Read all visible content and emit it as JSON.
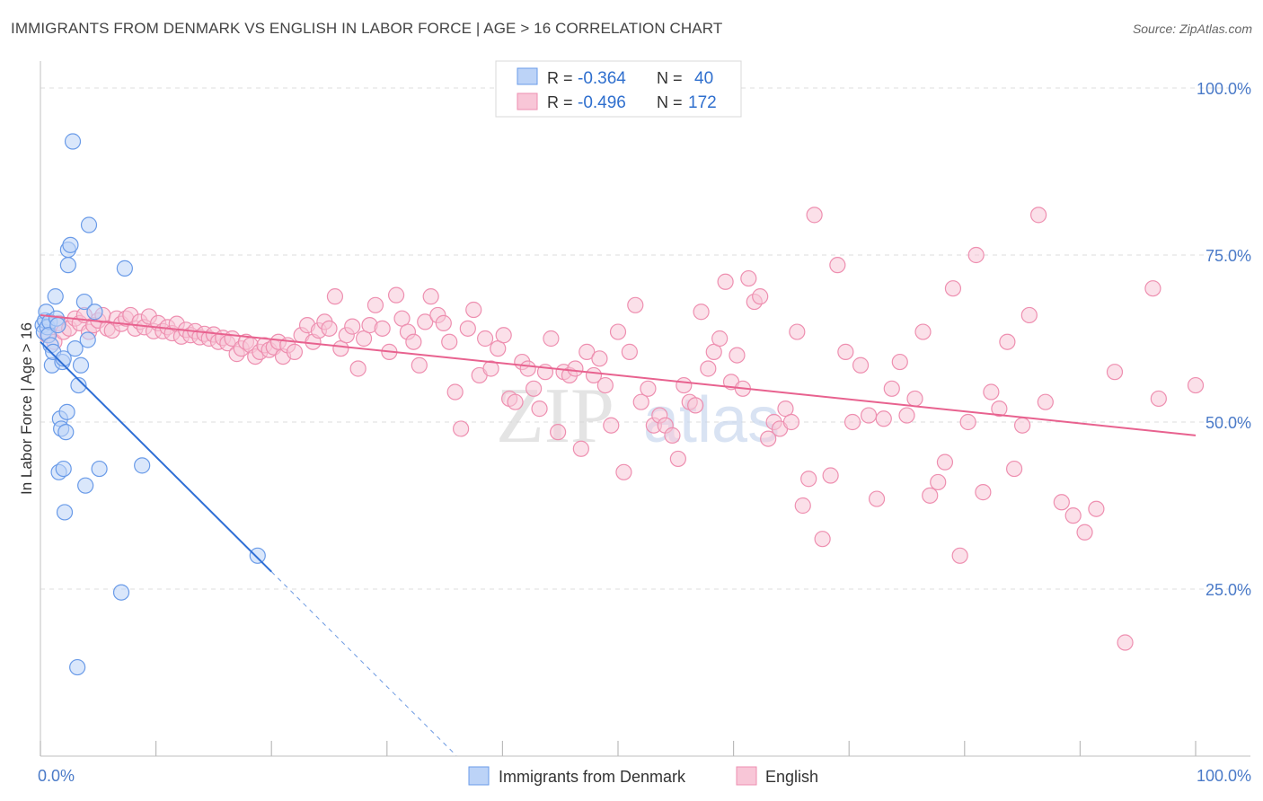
{
  "title": "IMMIGRANTS FROM DENMARK VS ENGLISH IN LABOR FORCE | AGE > 16 CORRELATION CHART",
  "source": "Source: ZipAtlas.com",
  "watermark": "ZIPatlas",
  "colors": {
    "blue": "#6a9be8",
    "blue_fill": "#bcd3f7",
    "blue_line": "#2f6fd6",
    "pink": "#ee8fb0",
    "pink_fill": "#f8c6d7",
    "pink_line": "#e8628f",
    "tick_text": "#4a7ac8",
    "grid": "#dddddd"
  },
  "legend": {
    "rows": [
      {
        "r_label": "R =",
        "r_value": "-0.364",
        "n_label": "N =",
        "n_value": "40"
      },
      {
        "r_label": "R =",
        "r_value": "-0.496",
        "n_label": "N =",
        "n_value": "172"
      }
    ]
  },
  "bottom_legend": [
    "Immigrants from Denmark",
    "English"
  ],
  "chart_data": {
    "type": "scatter",
    "ylabel": "In Labor Force | Age > 16",
    "xlabel": "",
    "xlim": [
      0,
      100
    ],
    "ylim": [
      0,
      100
    ],
    "x_tick_labels": [
      {
        "value": 0,
        "label": "0.0%"
      },
      {
        "value": 100,
        "label": "100.0%"
      }
    ],
    "y_tick_labels": [
      {
        "value": 25,
        "label": "25.0%"
      },
      {
        "value": 50,
        "label": "50.0%"
      },
      {
        "value": 75,
        "label": "75.0%"
      },
      {
        "value": 100,
        "label": "100.0%"
      }
    ],
    "grid": true,
    "legend_position": "top-center",
    "series": [
      {
        "name": "Immigrants from Denmark",
        "color": "#6a9be8",
        "trend": {
          "x0": 0.0,
          "y0": 62.0,
          "x1": 20.0,
          "y1": 27.6,
          "dash_to_x": 36.0
        },
        "points": [
          [
            0.2,
            64.5
          ],
          [
            0.3,
            63.5
          ],
          [
            0.4,
            65.2
          ],
          [
            0.5,
            66.5
          ],
          [
            0.6,
            64.2
          ],
          [
            0.8,
            65.0
          ],
          [
            0.7,
            63.0
          ],
          [
            0.9,
            61.5
          ],
          [
            1.0,
            58.5
          ],
          [
            1.1,
            60.5
          ],
          [
            1.3,
            68.8
          ],
          [
            1.4,
            65.5
          ],
          [
            1.5,
            64.5
          ],
          [
            1.6,
            42.5
          ],
          [
            1.7,
            50.5
          ],
          [
            1.8,
            49.0
          ],
          [
            1.9,
            59.0
          ],
          [
            2.0,
            43.0
          ],
          [
            2.0,
            59.5
          ],
          [
            2.1,
            36.5
          ],
          [
            2.2,
            48.5
          ],
          [
            2.3,
            51.5
          ],
          [
            2.4,
            73.5
          ],
          [
            2.4,
            75.8
          ],
          [
            2.6,
            76.5
          ],
          [
            2.8,
            92.0
          ],
          [
            3.0,
            61.0
          ],
          [
            3.2,
            13.3
          ],
          [
            3.3,
            55.5
          ],
          [
            3.5,
            58.5
          ],
          [
            3.8,
            68.0
          ],
          [
            3.9,
            40.5
          ],
          [
            4.1,
            62.3
          ],
          [
            4.2,
            79.5
          ],
          [
            4.7,
            66.5
          ],
          [
            5.1,
            43.0
          ],
          [
            7.0,
            24.5
          ],
          [
            7.3,
            73.0
          ],
          [
            8.8,
            43.5
          ],
          [
            18.8,
            30.0
          ]
        ]
      },
      {
        "name": "English",
        "color": "#ee8fb0",
        "trend": {
          "x0": 0.0,
          "y0": 66.0,
          "x1": 100.0,
          "y1": 48.0
        },
        "points": [
          [
            0.6,
            63.0
          ],
          [
            1.2,
            62.0
          ],
          [
            1.6,
            64.8
          ],
          [
            2.0,
            63.5
          ],
          [
            2.5,
            64.0
          ],
          [
            3.0,
            65.5
          ],
          [
            3.4,
            64.8
          ],
          [
            3.8,
            66.0
          ],
          [
            4.2,
            63.5
          ],
          [
            4.6,
            64.5
          ],
          [
            5.0,
            65.2
          ],
          [
            5.4,
            66.0
          ],
          [
            5.8,
            64.0
          ],
          [
            6.2,
            63.7
          ],
          [
            6.6,
            65.5
          ],
          [
            7.0,
            64.7
          ],
          [
            7.4,
            65.5
          ],
          [
            7.8,
            66.0
          ],
          [
            8.2,
            64.0
          ],
          [
            8.6,
            65.0
          ],
          [
            9.0,
            64.2
          ],
          [
            9.4,
            65.8
          ],
          [
            9.8,
            63.6
          ],
          [
            10.2,
            64.8
          ],
          [
            10.6,
            63.6
          ],
          [
            11.0,
            64.2
          ],
          [
            11.4,
            63.3
          ],
          [
            11.8,
            64.7
          ],
          [
            12.2,
            62.8
          ],
          [
            12.6,
            63.8
          ],
          [
            13.0,
            63.0
          ],
          [
            13.4,
            63.6
          ],
          [
            13.8,
            62.7
          ],
          [
            14.2,
            63.2
          ],
          [
            14.6,
            62.5
          ],
          [
            15.0,
            63.1
          ],
          [
            15.4,
            62.0
          ],
          [
            15.8,
            62.6
          ],
          [
            16.2,
            61.8
          ],
          [
            16.6,
            62.5
          ],
          [
            17.0,
            60.2
          ],
          [
            17.4,
            61.0
          ],
          [
            17.8,
            62.0
          ],
          [
            18.2,
            61.5
          ],
          [
            18.6,
            59.8
          ],
          [
            19.0,
            60.5
          ],
          [
            19.4,
            61.5
          ],
          [
            19.8,
            60.8
          ],
          [
            20.2,
            61.2
          ],
          [
            20.6,
            62.0
          ],
          [
            21.0,
            59.8
          ],
          [
            21.4,
            61.5
          ],
          [
            22.0,
            60.5
          ],
          [
            22.6,
            63.0
          ],
          [
            23.1,
            64.5
          ],
          [
            23.6,
            62.0
          ],
          [
            24.1,
            63.7
          ],
          [
            24.6,
            65.0
          ],
          [
            25.0,
            64.0
          ],
          [
            25.5,
            68.8
          ],
          [
            26.0,
            61.0
          ],
          [
            26.5,
            63.0
          ],
          [
            27.0,
            64.3
          ],
          [
            27.5,
            58.0
          ],
          [
            28.0,
            62.5
          ],
          [
            28.5,
            64.5
          ],
          [
            29.0,
            67.5
          ],
          [
            29.6,
            64.0
          ],
          [
            30.2,
            60.5
          ],
          [
            30.8,
            69.0
          ],
          [
            31.3,
            65.5
          ],
          [
            31.8,
            63.5
          ],
          [
            32.3,
            62.0
          ],
          [
            32.8,
            58.5
          ],
          [
            33.3,
            65.0
          ],
          [
            33.8,
            68.8
          ],
          [
            34.4,
            66.0
          ],
          [
            34.9,
            64.8
          ],
          [
            35.4,
            62.0
          ],
          [
            35.9,
            54.5
          ],
          [
            36.4,
            49.0
          ],
          [
            37.0,
            64.0
          ],
          [
            37.5,
            66.8
          ],
          [
            38.0,
            57.0
          ],
          [
            38.5,
            62.5
          ],
          [
            39.0,
            58.0
          ],
          [
            39.6,
            61.0
          ],
          [
            40.1,
            63.0
          ],
          [
            40.6,
            53.5
          ],
          [
            41.1,
            53.0
          ],
          [
            41.7,
            59.0
          ],
          [
            42.2,
            58.0
          ],
          [
            42.7,
            55.0
          ],
          [
            43.2,
            52.0
          ],
          [
            43.7,
            57.5
          ],
          [
            44.2,
            62.5
          ],
          [
            44.8,
            48.5
          ],
          [
            45.3,
            57.5
          ],
          [
            45.8,
            57.0
          ],
          [
            46.3,
            58.0
          ],
          [
            46.8,
            46.0
          ],
          [
            47.3,
            60.5
          ],
          [
            47.9,
            57.0
          ],
          [
            48.4,
            59.5
          ],
          [
            48.9,
            55.5
          ],
          [
            49.4,
            49.5
          ],
          [
            50.0,
            63.5
          ],
          [
            50.5,
            42.5
          ],
          [
            51.0,
            60.5
          ],
          [
            51.5,
            67.5
          ],
          [
            52.0,
            53.0
          ],
          [
            52.6,
            55.0
          ],
          [
            53.1,
            49.5
          ],
          [
            53.6,
            51.0
          ],
          [
            54.1,
            49.5
          ],
          [
            54.7,
            48.0
          ],
          [
            55.2,
            44.5
          ],
          [
            55.7,
            55.5
          ],
          [
            56.2,
            53.0
          ],
          [
            56.7,
            52.5
          ],
          [
            57.2,
            66.5
          ],
          [
            57.8,
            58.0
          ],
          [
            58.3,
            60.5
          ],
          [
            58.8,
            62.5
          ],
          [
            59.3,
            71.0
          ],
          [
            59.8,
            56.0
          ],
          [
            60.3,
            60.0
          ],
          [
            60.8,
            55.0
          ],
          [
            61.3,
            71.5
          ],
          [
            61.8,
            68.0
          ],
          [
            62.3,
            68.8
          ],
          [
            63.0,
            47.5
          ],
          [
            63.5,
            50.0
          ],
          [
            64.0,
            49.0
          ],
          [
            64.5,
            52.0
          ],
          [
            65.0,
            50.0
          ],
          [
            65.5,
            63.5
          ],
          [
            66.0,
            37.5
          ],
          [
            66.5,
            41.5
          ],
          [
            67.0,
            81.0
          ],
          [
            67.7,
            32.5
          ],
          [
            68.4,
            42.0
          ],
          [
            69.0,
            73.5
          ],
          [
            69.7,
            60.5
          ],
          [
            70.3,
            50.0
          ],
          [
            71.0,
            58.5
          ],
          [
            71.7,
            51.0
          ],
          [
            72.4,
            38.5
          ],
          [
            73.0,
            50.5
          ],
          [
            73.7,
            55.0
          ],
          [
            74.4,
            59.0
          ],
          [
            75.0,
            51.0
          ],
          [
            75.7,
            53.5
          ],
          [
            76.4,
            63.5
          ],
          [
            77.0,
            39.0
          ],
          [
            77.7,
            41.0
          ],
          [
            78.3,
            44.0
          ],
          [
            79.0,
            70.0
          ],
          [
            79.6,
            30.0
          ],
          [
            80.3,
            50.0
          ],
          [
            81.0,
            75.0
          ],
          [
            81.6,
            39.5
          ],
          [
            82.3,
            54.5
          ],
          [
            83.0,
            52.0
          ],
          [
            83.7,
            62.0
          ],
          [
            84.3,
            43.0
          ],
          [
            85.0,
            49.5
          ],
          [
            85.6,
            66.0
          ],
          [
            86.4,
            81.0
          ],
          [
            87.0,
            53.0
          ],
          [
            88.4,
            38.0
          ],
          [
            89.4,
            36.0
          ],
          [
            90.4,
            33.5
          ],
          [
            91.4,
            37.0
          ],
          [
            93.0,
            57.5
          ],
          [
            93.9,
            17.0
          ],
          [
            96.3,
            70.0
          ],
          [
            96.8,
            53.5
          ],
          [
            100.0,
            55.5
          ]
        ]
      }
    ]
  }
}
